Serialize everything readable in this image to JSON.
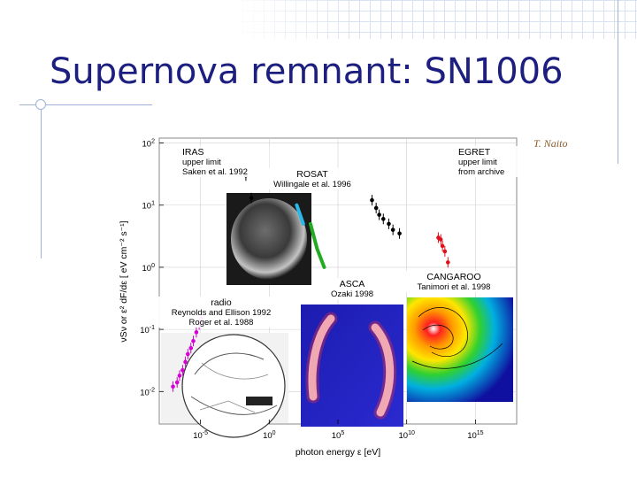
{
  "slide": {
    "title": "Supernova remnant: SN1006",
    "credit": "T. Naito"
  },
  "chart_data": {
    "type": "scatter",
    "xlabel": "photon energy ε [eV]",
    "ylabel": "νSν or ε² dF/dε [ eV cm⁻² s⁻¹]",
    "x_scale": "log",
    "y_scale": "log",
    "xlim_eV": [
      1e-08,
      1e+18
    ],
    "ylim": [
      0.003,
      120
    ],
    "x_ticks": [
      {
        "value": 1e-05,
        "base": "10",
        "exp": "-5"
      },
      {
        "value": 1.0,
        "base": "10",
        "exp": "0"
      },
      {
        "value": 100000.0,
        "base": "10",
        "exp": "5"
      },
      {
        "value": 10000000000.0,
        "base": "10",
        "exp": "10"
      },
      {
        "value": 1000000000000000.0,
        "base": "10",
        "exp": "15"
      }
    ],
    "y_ticks": [
      {
        "value": 100,
        "base": "10",
        "exp": "2"
      },
      {
        "value": 10,
        "base": "10",
        "exp": "1"
      },
      {
        "value": 1,
        "base": "10",
        "exp": "0"
      },
      {
        "value": 0.1,
        "base": "10",
        "exp": "-1"
      },
      {
        "value": 0.01,
        "base": "10",
        "exp": "-2"
      }
    ],
    "grid": true,
    "annotations": [
      {
        "id": "iras",
        "lines": [
          "IRAS",
          "upper limit",
          "Saken et al. 1992"
        ]
      },
      {
        "id": "rosat",
        "lines": [
          "ROSAT",
          "Willingale et al. 1996"
        ]
      },
      {
        "id": "egret",
        "lines": [
          "EGRET",
          "upper limit",
          "from archive"
        ]
      },
      {
        "id": "asca",
        "lines": [
          "ASCA",
          "Ozaki 1998"
        ]
      },
      {
        "id": "cangaroo",
        "lines": [
          "CANGAROO",
          "Tanimori et al. 1998"
        ]
      },
      {
        "id": "radio",
        "lines": [
          "radio",
          "Reynolds and Ellison 1992",
          "Roger et al. 1988"
        ]
      }
    ],
    "series": [
      {
        "name": "radio",
        "color": "#d400d4",
        "points": [
          [
            1e-07,
            0.012
          ],
          [
            2e-07,
            0.014
          ],
          [
            3e-07,
            0.018
          ],
          [
            5e-07,
            0.022
          ],
          [
            8e-07,
            0.03
          ],
          [
            1.2e-06,
            0.04
          ],
          [
            2e-06,
            0.05
          ],
          [
            3e-06,
            0.065
          ],
          [
            5e-06,
            0.09
          ],
          [
            8e-06,
            0.12
          ],
          [
            1.2e-05,
            0.15
          ]
        ]
      },
      {
        "name": "IRAS upper limit",
        "color": "#000000",
        "points": [
          [
            0.02,
            30
          ],
          [
            0.05,
            13
          ]
        ]
      },
      {
        "name": "ROSAT",
        "color": "#29b8e8",
        "points": [
          [
            100,
            10
          ],
          [
            300,
            5
          ]
        ]
      },
      {
        "name": "ASCA",
        "color": "#22aa22",
        "points": [
          [
            1000,
            5
          ],
          [
            3000,
            2
          ],
          [
            10000,
            1
          ]
        ]
      },
      {
        "name": "EGRET upper limit",
        "color": "#000000",
        "points": [
          [
            30000000.0,
            12
          ],
          [
            60000000.0,
            9
          ],
          [
            100000000.0,
            7
          ],
          [
            200000000.0,
            6
          ],
          [
            500000000.0,
            5
          ],
          [
            1000000000.0,
            4
          ],
          [
            3000000000.0,
            3.5
          ]
        ]
      },
      {
        "name": "CANGAROO",
        "color": "#e0101a",
        "points": [
          [
            2000000000000.0,
            3
          ],
          [
            3000000000000.0,
            2.8
          ],
          [
            4000000000000.0,
            2.2
          ],
          [
            6000000000000.0,
            1.8
          ],
          [
            10000000000000.0,
            1.2
          ]
        ]
      }
    ]
  }
}
